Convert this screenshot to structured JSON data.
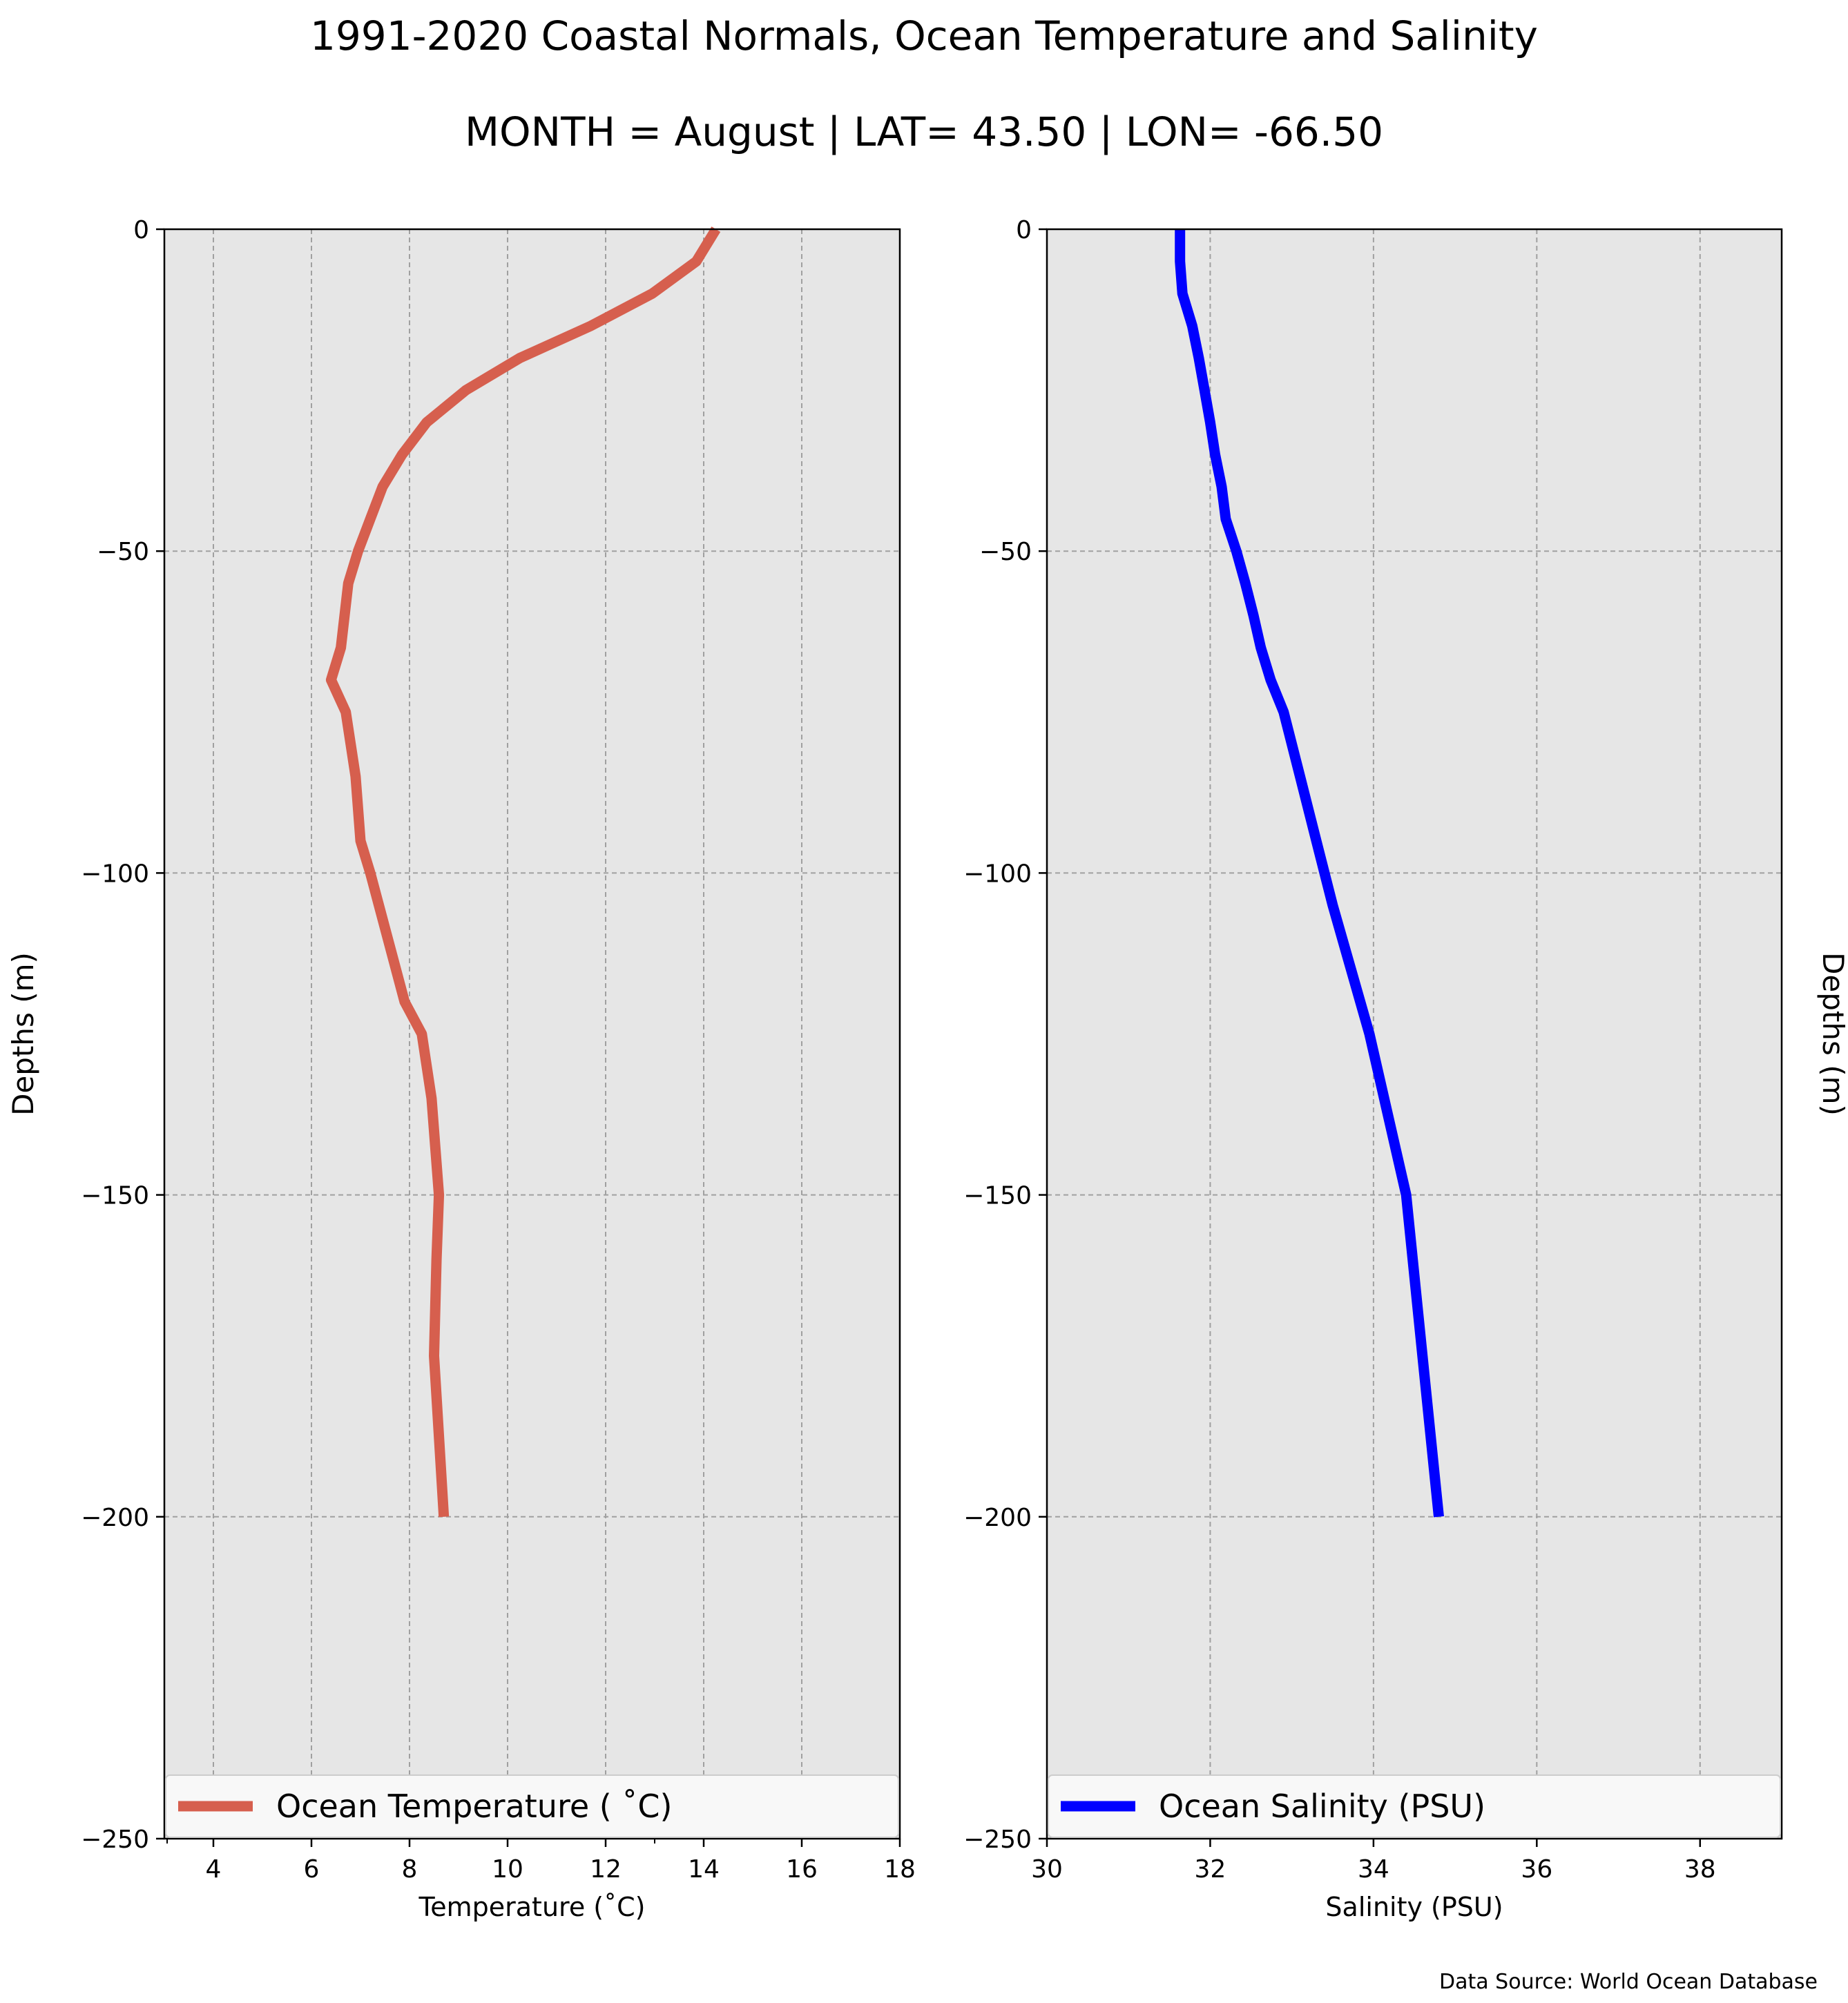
{
  "figure": {
    "title": "1991-2020 Coastal Normals, Ocean Temperature and Salinity",
    "subtitle": "MONTH = August | LAT= 43.50 | LON= -66.50",
    "source": "Data Source: World Ocean Database"
  },
  "colors": {
    "temperature": "#d65f4e",
    "salinity": "#0000ff",
    "axes_background": "#e6e6e6",
    "grid": "#a0a0a0"
  },
  "chart_data": [
    {
      "type": "line",
      "xlabel": "Temperature ($^\\circ$C)",
      "xlabel_display": "Temperature (˚C)",
      "ylabel": "Depths (m)",
      "xlim": [
        3,
        18
      ],
      "ylim": [
        -250,
        0
      ],
      "xticks": [
        4,
        6,
        8,
        10,
        12,
        14,
        16,
        18
      ],
      "xticks_minor": [
        13
      ],
      "yticks": [
        0,
        -50,
        -100,
        -150,
        -200,
        -250
      ],
      "ytick_labels": [
        "0",
        "−50",
        "−100",
        "−150",
        "−200",
        "−250"
      ],
      "grid": true,
      "legend_position": "bottom",
      "series": [
        {
          "name": "Ocean Temperature ( ˚C)",
          "x": [
            14.25,
            13.85,
            12.95,
            11.7,
            10.25,
            9.15,
            8.35,
            7.85,
            7.45,
            7.2,
            6.95,
            6.75,
            6.6,
            6.4,
            6.7,
            6.8,
            6.9,
            7.0,
            7.2,
            7.9,
            8.25,
            8.45,
            8.6,
            8.55,
            8.5,
            8.7
          ],
          "y": [
            0,
            -5,
            -10,
            -15,
            -20,
            -25,
            -30,
            -35,
            -40,
            -45,
            -50,
            -55,
            -65,
            -70,
            -75,
            -80,
            -85,
            -95,
            -100,
            -120,
            -125,
            -135,
            -150,
            -160,
            -175,
            -200
          ]
        }
      ]
    },
    {
      "type": "line",
      "xlabel": "Salinity (PSU)",
      "ylabel": "Depths (m)",
      "xlim": [
        30,
        39
      ],
      "ylim": [
        -250,
        0
      ],
      "xticks": [
        30,
        32,
        34,
        36,
        38
      ],
      "yticks": [
        0,
        -50,
        -100,
        -150,
        -200,
        -250
      ],
      "ytick_labels": [
        "0",
        "−50",
        "−100",
        "−150",
        "−200",
        "−250"
      ],
      "grid": true,
      "legend_position": "bottom",
      "series": [
        {
          "name": "Ocean Salinity (PSU)",
          "x": [
            31.63,
            31.63,
            31.66,
            31.78,
            31.86,
            31.93,
            32.0,
            32.06,
            32.14,
            32.19,
            32.32,
            32.43,
            32.53,
            32.62,
            32.74,
            32.9,
            33.1,
            33.3,
            33.5,
            33.95,
            34.4,
            34.6,
            34.8
          ],
          "y": [
            0,
            -5,
            -10,
            -15,
            -20,
            -25,
            -30,
            -35,
            -40,
            -45,
            -50,
            -55,
            -60,
            -65,
            -70,
            -75,
            -85,
            -95,
            -105,
            -125,
            -150,
            -175,
            -200
          ]
        }
      ]
    }
  ]
}
